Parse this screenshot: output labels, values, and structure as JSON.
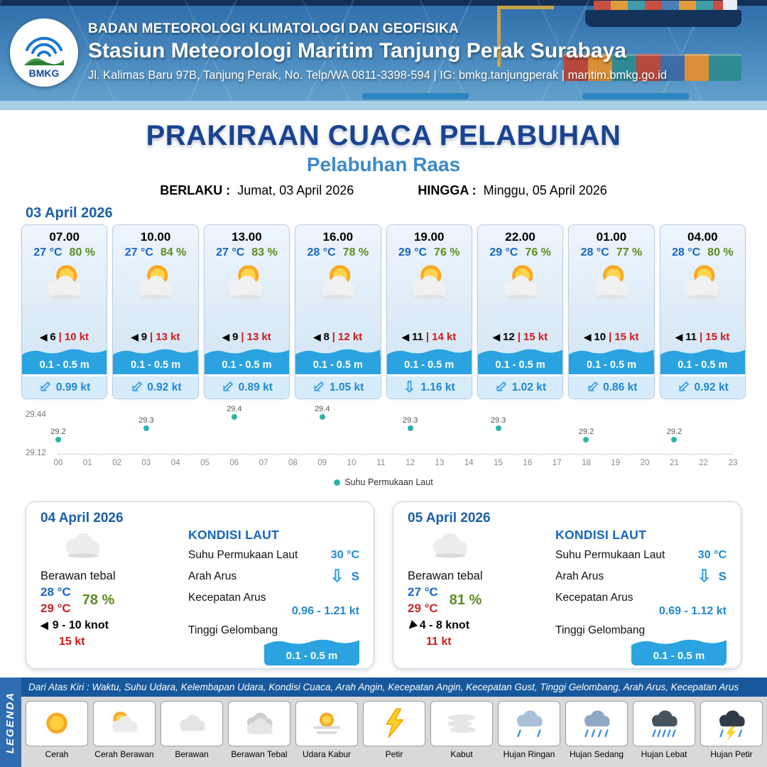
{
  "header": {
    "org": "BADAN METEOROLOGI KLIMATOLOGI DAN GEOFISIKA",
    "station": "Stasiun Meteorologi Maritim Tanjung Perak Surabaya",
    "address": "Jl. Kalimas Baru 97B, Tanjung Perak, No. Telp/WA 0811-3398-594 | IG: bmkg.tanjungperak | maritim.bmkg.go.id",
    "logo_text": "BMKG"
  },
  "title": {
    "main": "PRAKIRAAN CUACA PELABUHAN",
    "port": "Pelabuhan Raas",
    "valid_label": "BERLAKU :",
    "valid_value": "Jumat, 03 April 2026",
    "until_label": "HINGGA :",
    "until_value": "Minggu, 05 April 2026"
  },
  "icons": {
    "wind_arrow": "◀",
    "current_arrow": "⇩"
  },
  "forecast": {
    "date": "03 April 2026",
    "weather_icon": "cerah-berawan",
    "sep": "|",
    "cards": [
      {
        "time": "07.00",
        "temp": "27 °C",
        "rh": "80 %",
        "wind": "6",
        "gust": "10 kt",
        "wave": "0.1 - 0.5 m",
        "current": "0.99 kt",
        "current_dir_deg": 45
      },
      {
        "time": "10.00",
        "temp": "27 °C",
        "rh": "84 %",
        "wind": "9",
        "gust": "13 kt",
        "wave": "0.1 - 0.5 m",
        "current": "0.92 kt",
        "current_dir_deg": 45
      },
      {
        "time": "13.00",
        "temp": "27 °C",
        "rh": "83 %",
        "wind": "9",
        "gust": "13 kt",
        "wave": "0.1 - 0.5 m",
        "current": "0.89 kt",
        "current_dir_deg": 45
      },
      {
        "time": "16.00",
        "temp": "28 °C",
        "rh": "78 %",
        "wind": "8",
        "gust": "12 kt",
        "wave": "0.1 - 0.5 m",
        "current": "1.05 kt",
        "current_dir_deg": 45
      },
      {
        "time": "19.00",
        "temp": "29 °C",
        "rh": "76 %",
        "wind": "11",
        "gust": "14 kt",
        "wave": "0.1 - 0.5 m",
        "current": "1.16 kt",
        "current_dir_deg": 0
      },
      {
        "time": "22.00",
        "temp": "29 °C",
        "rh": "76 %",
        "wind": "12",
        "gust": "15 kt",
        "wave": "0.1 - 0.5 m",
        "current": "1.02 kt",
        "current_dir_deg": 45
      },
      {
        "time": "01.00",
        "temp": "28 °C",
        "rh": "77 %",
        "wind": "10",
        "gust": "15 kt",
        "wave": "0.1 - 0.5 m",
        "current": "0.86 kt",
        "current_dir_deg": 45
      },
      {
        "time": "04.00",
        "temp": "28 °C",
        "rh": "80 %",
        "wind": "11",
        "gust": "15 kt",
        "wave": "0.1 - 0.5 m",
        "current": "0.92 kt",
        "current_dir_deg": 45
      }
    ]
  },
  "chart_data": {
    "type": "scatter",
    "title": "Suhu Permukaan Laut",
    "x": [
      0,
      3,
      6,
      9,
      12,
      15,
      18,
      21
    ],
    "values": [
      29.2,
      29.3,
      29.4,
      29.4,
      29.3,
      29.3,
      29.2,
      29.2
    ],
    "x_ticks": [
      "00",
      "01",
      "02",
      "03",
      "04",
      "05",
      "06",
      "07",
      "08",
      "09",
      "10",
      "11",
      "12",
      "13",
      "14",
      "15",
      "16",
      "17",
      "18",
      "19",
      "20",
      "21",
      "22",
      "23"
    ],
    "ylim": [
      29.12,
      29.44
    ],
    "ymax_label": "29.44",
    "ymin_label": "29.12",
    "legend": "Suhu Permukaan Laut",
    "legend_position": "bottom",
    "grid": false,
    "dot_color": "#2ab5a8"
  },
  "sea_labels": {
    "title": "KONDISI LAUT",
    "sst": "Suhu Permukaan Laut",
    "current_dir": "Arah Arus",
    "current_speed": "Kecepatan Arus",
    "wave": "Tinggi Gelombang"
  },
  "daily": [
    {
      "date": "04 April 2026",
      "condition": "Berawan tebal",
      "temp_min": "28 °C",
      "temp_max": "29 °C",
      "rh": "78 %",
      "wind": "9  - 10 knot",
      "gust": "15 kt",
      "wind_dir_deg": 0,
      "sst": "30 °C",
      "current_dir": "S",
      "current_speed": "0.96  - 1.21 kt",
      "wave": "0.1 - 0.5 m"
    },
    {
      "date": "05 April 2026",
      "condition": "Berawan tebal",
      "temp_min": "27 °C",
      "temp_max": "29 °C",
      "rh": "81 %",
      "wind": "4  - 8 knot",
      "gust": "11 kt",
      "wind_dir_deg": -45,
      "sst": "30 °C",
      "current_dir": "S",
      "current_speed": "0.69  - 1.12 kt",
      "wave": "0.1 - 0.5 m"
    }
  ],
  "legend": {
    "band": "LEGENDA",
    "note": "Dari Atas Kiri : Waktu, Suhu Udara, Kelembapan Udara, Kondisi Cuaca, Arah Angin, Kecepatan Angin, Kecepatan Gust, Tinggi Gelombang, Arah Arus, Kecepatan Arus",
    "items": [
      {
        "icon": "cerah",
        "label": "Cerah"
      },
      {
        "icon": "cerah-berawan",
        "label": "Cerah Berawan"
      },
      {
        "icon": "berawan",
        "label": "Berawan"
      },
      {
        "icon": "berawan-tebal",
        "label": "Berawan Tebal"
      },
      {
        "icon": "udara-kabur",
        "label": "Udara Kabur"
      },
      {
        "icon": "petir",
        "label": "Petir"
      },
      {
        "icon": "kabut",
        "label": "Kabut"
      },
      {
        "icon": "hujan-ringan",
        "label": "Hujan Ringan"
      },
      {
        "icon": "hujan-sedang",
        "label": "Hujan Sedang"
      },
      {
        "icon": "hujan-lebat",
        "label": "Hujan Lebat"
      },
      {
        "icon": "hujan-petir",
        "label": "Hujan Petir"
      }
    ]
  }
}
